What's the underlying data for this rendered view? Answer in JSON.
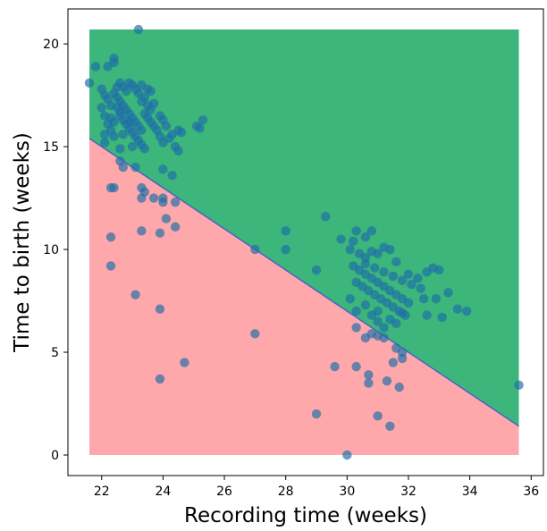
{
  "chart_data": {
    "type": "scatter",
    "xlabel": "Recording time (weeks)",
    "ylabel": "Time to birth (weeks)",
    "xlim": [
      20.9,
      36.4
    ],
    "ylim": [
      -1.0,
      21.7
    ],
    "xticks": [
      22,
      24,
      26,
      28,
      30,
      32,
      34,
      36
    ],
    "yticks": [
      0,
      5,
      10,
      15,
      20
    ],
    "grid": false,
    "regions": {
      "x_range": [
        21.6,
        35.6
      ],
      "top": 20.7,
      "bottom": 0,
      "boundary_line": {
        "x": [
          21.6,
          35.6
        ],
        "y": [
          15.4,
          1.4
        ]
      },
      "upper_color": "#3cb67b",
      "lower_color": "#ffa8ab",
      "line_color": "#4a62c8"
    },
    "point_color": "#1f6fa8",
    "points": [
      [
        21.6,
        18.1
      ],
      [
        21.8,
        18.9
      ],
      [
        22.2,
        18.9
      ],
      [
        22.4,
        19.1
      ],
      [
        22.4,
        19.3
      ],
      [
        22.0,
        17.8
      ],
      [
        22.1,
        17.5
      ],
      [
        22.2,
        17.3
      ],
      [
        22.3,
        17.0
      ],
      [
        22.0,
        16.9
      ],
      [
        22.1,
        16.5
      ],
      [
        22.3,
        16.4
      ],
      [
        22.5,
        17.9
      ],
      [
        22.6,
        18.1
      ],
      [
        22.7,
        17.9
      ],
      [
        22.8,
        17.7
      ],
      [
        22.9,
        18.1
      ],
      [
        23.0,
        18.0
      ],
      [
        23.1,
        17.8
      ],
      [
        23.2,
        17.6
      ],
      [
        22.4,
        17.6
      ],
      [
        22.5,
        17.4
      ],
      [
        22.6,
        17.2
      ],
      [
        22.7,
        17.0
      ],
      [
        22.8,
        16.8
      ],
      [
        22.9,
        16.6
      ],
      [
        23.0,
        16.4
      ],
      [
        23.1,
        16.2
      ],
      [
        23.2,
        16.0
      ],
      [
        23.3,
        15.8
      ],
      [
        22.5,
        16.9
      ],
      [
        22.6,
        16.5
      ],
      [
        22.7,
        16.3
      ],
      [
        22.8,
        16.1
      ],
      [
        22.9,
        15.9
      ],
      [
        23.0,
        15.7
      ],
      [
        23.1,
        15.5
      ],
      [
        23.2,
        15.3
      ],
      [
        23.3,
        15.1
      ],
      [
        23.4,
        14.9
      ],
      [
        22.2,
        16.1
      ],
      [
        22.3,
        15.8
      ],
      [
        22.4,
        15.5
      ],
      [
        22.1,
        15.6
      ],
      [
        22.1,
        15.2
      ],
      [
        23.4,
        16.6
      ],
      [
        23.5,
        16.4
      ],
      [
        23.6,
        16.2
      ],
      [
        23.7,
        16.0
      ],
      [
        23.8,
        15.8
      ],
      [
        23.3,
        17.2
      ],
      [
        23.4,
        17.4
      ],
      [
        23.5,
        17.0
      ],
      [
        23.6,
        16.8
      ],
      [
        23.9,
        16.5
      ],
      [
        24.0,
        16.3
      ],
      [
        24.1,
        16.0
      ],
      [
        23.9,
        15.5
      ],
      [
        24.0,
        15.2
      ],
      [
        24.2,
        15.4
      ],
      [
        24.3,
        15.6
      ],
      [
        24.5,
        15.8
      ],
      [
        24.6,
        15.7
      ],
      [
        24.4,
        15.0
      ],
      [
        24.5,
        14.8
      ],
      [
        24.0,
        13.9
      ],
      [
        24.3,
        13.6
      ],
      [
        25.1,
        16.0
      ],
      [
        25.2,
        15.9
      ],
      [
        25.3,
        16.3
      ],
      [
        23.3,
        18.0
      ],
      [
        23.5,
        17.8
      ],
      [
        23.6,
        17.7
      ],
      [
        23.7,
        17.1
      ],
      [
        22.7,
        15.6
      ],
      [
        22.6,
        14.9
      ],
      [
        23.0,
        15.0
      ],
      [
        22.9,
        16.2
      ],
      [
        22.6,
        16.7
      ],
      [
        22.4,
        16.2
      ],
      [
        23.2,
        20.7
      ],
      [
        22.6,
        14.3
      ],
      [
        22.7,
        14.0
      ],
      [
        23.1,
        14.0
      ],
      [
        23.3,
        13.0
      ],
      [
        23.4,
        12.8
      ],
      [
        23.3,
        12.5
      ],
      [
        23.7,
        12.5
      ],
      [
        24.0,
        12.5
      ],
      [
        24.0,
        12.3
      ],
      [
        24.4,
        12.3
      ],
      [
        22.3,
        13.0
      ],
      [
        22.4,
        13.0
      ],
      [
        24.1,
        11.5
      ],
      [
        24.4,
        11.1
      ],
      [
        23.3,
        10.9
      ],
      [
        23.9,
        10.8
      ],
      [
        22.3,
        10.6
      ],
      [
        22.3,
        9.2
      ],
      [
        23.1,
        7.8
      ],
      [
        23.9,
        7.1
      ],
      [
        23.9,
        3.7
      ],
      [
        24.7,
        4.5
      ],
      [
        27.0,
        10.0
      ],
      [
        27.0,
        5.9
      ],
      [
        28.0,
        10.9
      ],
      [
        28.0,
        10.0
      ],
      [
        29.0,
        9.0
      ],
      [
        29.3,
        11.6
      ],
      [
        29.0,
        2.0
      ],
      [
        29.6,
        4.3
      ],
      [
        30.2,
        10.4
      ],
      [
        30.3,
        10.9
      ],
      [
        30.6,
        10.6
      ],
      [
        30.8,
        10.9
      ],
      [
        30.1,
        10.0
      ],
      [
        30.4,
        9.8
      ],
      [
        30.6,
        9.6
      ],
      [
        30.8,
        9.9
      ],
      [
        31.0,
        9.8
      ],
      [
        31.2,
        10.1
      ],
      [
        31.4,
        10.0
      ],
      [
        30.2,
        9.2
      ],
      [
        30.4,
        9.0
      ],
      [
        30.6,
        8.8
      ],
      [
        30.8,
        8.6
      ],
      [
        31.0,
        8.4
      ],
      [
        31.2,
        8.2
      ],
      [
        31.4,
        8.0
      ],
      [
        31.6,
        7.8
      ],
      [
        31.8,
        7.6
      ],
      [
        32.0,
        7.4
      ],
      [
        30.3,
        8.4
      ],
      [
        30.5,
        8.2
      ],
      [
        30.7,
        8.0
      ],
      [
        30.9,
        7.8
      ],
      [
        31.1,
        7.6
      ],
      [
        31.3,
        7.4
      ],
      [
        31.5,
        7.2
      ],
      [
        31.7,
        7.0
      ],
      [
        31.9,
        6.8
      ],
      [
        30.6,
        9.3
      ],
      [
        30.9,
        9.1
      ],
      [
        31.2,
        8.9
      ],
      [
        31.5,
        8.7
      ],
      [
        31.8,
        8.5
      ],
      [
        32.1,
        8.3
      ],
      [
        32.4,
        8.1
      ],
      [
        32.0,
        8.8
      ],
      [
        32.3,
        8.6
      ],
      [
        32.6,
        8.9
      ],
      [
        32.8,
        9.1
      ],
      [
        33.0,
        9.0
      ],
      [
        32.5,
        7.6
      ],
      [
        32.9,
        7.6
      ],
      [
        33.3,
        7.9
      ],
      [
        33.6,
        7.1
      ],
      [
        33.9,
        7.0
      ],
      [
        32.6,
        6.8
      ],
      [
        33.1,
        6.7
      ],
      [
        30.1,
        7.6
      ],
      [
        30.3,
        7.0
      ],
      [
        30.6,
        7.3
      ],
      [
        30.8,
        6.8
      ],
      [
        31.0,
        6.5
      ],
      [
        31.2,
        6.2
      ],
      [
        31.0,
        7.0
      ],
      [
        31.4,
        6.6
      ],
      [
        31.6,
        6.4
      ],
      [
        31.8,
        6.9
      ],
      [
        30.8,
        5.9
      ],
      [
        31.0,
        5.8
      ],
      [
        31.2,
        5.7
      ],
      [
        31.6,
        5.2
      ],
      [
        31.8,
        5.0
      ],
      [
        31.8,
        4.7
      ],
      [
        31.5,
        4.5
      ],
      [
        30.6,
        5.7
      ],
      [
        30.3,
        6.2
      ],
      [
        30.3,
        4.3
      ],
      [
        30.7,
        3.9
      ],
      [
        30.7,
        3.5
      ],
      [
        31.3,
        3.6
      ],
      [
        31.7,
        3.3
      ],
      [
        31.0,
        1.9
      ],
      [
        31.4,
        1.4
      ],
      [
        30.0,
        0.0
      ],
      [
        35.6,
        3.4
      ],
      [
        29.8,
        10.5
      ],
      [
        31.6,
        9.4
      ]
    ]
  }
}
